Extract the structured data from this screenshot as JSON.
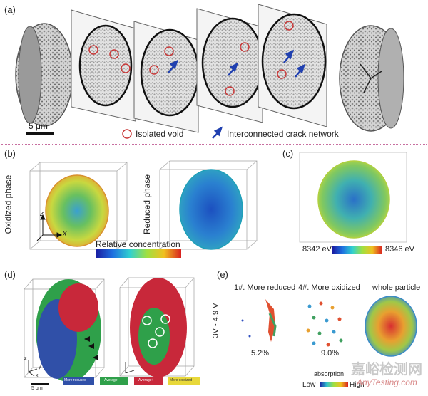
{
  "figure": {
    "panels": {
      "a": {
        "label": "(a)",
        "scale_bar": "5 μm",
        "legend_void": "Isolated void",
        "legend_crack": "Interconnected crack network"
      },
      "b": {
        "label": "(b)",
        "oxidized": "Oxidized phase",
        "reduced": "Reduced phase",
        "axis_z": "z",
        "axis_x": "x",
        "colorbar_title": "Relative concentration"
      },
      "c": {
        "label": "(c)",
        "energy_low": "8342 eV",
        "energy_high": "8346 eV"
      },
      "d": {
        "label": "(d)",
        "scale_bar": "5 μm",
        "axis_z": "z",
        "axis_y": "y",
        "axis_x": "x",
        "legend": [
          "More reduced",
          "Average-",
          "Average+",
          "More oxidized"
        ],
        "legend_colors": [
          "#3050a8",
          "#2fa04a",
          "#c8283a",
          "#e8d83a"
        ]
      },
      "e": {
        "label": "(e)",
        "col1": "1#. More reduced",
        "col2": "4#. More oxidized",
        "col3": "whole particle",
        "voltage": "3V - 4.9 V",
        "pct1": "5.2%",
        "pct2": "9.0%",
        "absorption": "absorption",
        "low": "Low",
        "high": "High"
      }
    },
    "watermark": {
      "cn": "嘉峪检测网",
      "en": "AnyTesting.com"
    }
  }
}
